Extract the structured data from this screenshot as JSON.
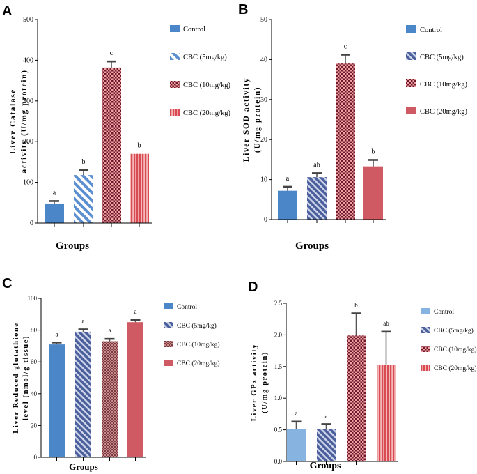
{
  "chart_data": [
    {
      "panel": "A",
      "type": "bar",
      "ylabel_lines": [
        "Liver Catalase",
        "activity (U/mg protein)"
      ],
      "xlabel": "Groups",
      "ylim": [
        0,
        500
      ],
      "yticks": [
        0,
        100,
        200,
        300,
        400,
        500
      ],
      "categories": [
        "Control",
        "CBC (5mg/kg)",
        "CBC (10mg/kg)",
        "CBC (20mg/kg)"
      ],
      "values": [
        48,
        118,
        382,
        170
      ],
      "errors": [
        6,
        12,
        15,
        0
      ],
      "letters": [
        "a",
        "b",
        "c",
        "b"
      ],
      "legend": [
        "Control",
        "CBC (5mg/kg)",
        "CBC (10mg/kg)",
        "CBC (20mg/kg)"
      ],
      "legend_position": "right"
    },
    {
      "panel": "B",
      "type": "bar",
      "ylabel_lines": [
        "Liver SOD activity",
        "(U/mg protein)"
      ],
      "xlabel": "Groups",
      "ylim": [
        0,
        50
      ],
      "yticks": [
        0,
        10,
        20,
        30,
        40,
        50
      ],
      "categories": [
        "Control",
        "CBC (5mg/kg)",
        "CBC (10mg/kg)",
        "CBC (20mg/kg)"
      ],
      "values": [
        7.2,
        10.6,
        39.0,
        13.3
      ],
      "errors": [
        1.0,
        1.0,
        2.2,
        1.6
      ],
      "letters": [
        "a",
        "ab",
        "c",
        "b"
      ],
      "legend": [
        "Control",
        "CBC (5mg/kg)",
        "CBC (10mg/kg)",
        "CBC (20mg/kg)"
      ],
      "legend_position": "right"
    },
    {
      "panel": "C",
      "type": "bar",
      "ylabel_lines": [
        "Liver Reduced glutathione",
        "level (nmol/g tissue)"
      ],
      "xlabel": "Groups",
      "ylim": [
        0,
        100
      ],
      "yticks": [
        0,
        20,
        40,
        60,
        80,
        100
      ],
      "categories": [
        "Control",
        "CBC (5mg/kg)",
        "CBC (10mg/kg)",
        "CBC (20mg/kg)"
      ],
      "values": [
        71,
        79,
        73,
        85
      ],
      "errors": [
        1.2,
        1.5,
        1.5,
        1.3
      ],
      "letters": [
        "a",
        "a",
        "a",
        "a"
      ],
      "legend": [
        "Control",
        "CBC (5mg/kg)",
        "CBC (10mg/kg)",
        "CBC (20mg/kg)"
      ],
      "legend_position": "right"
    },
    {
      "panel": "D",
      "type": "bar",
      "ylabel_lines": [
        "Liver GPx activity",
        "(U/mg protein)"
      ],
      "xlabel": "Groups",
      "ylim": [
        0,
        2.5
      ],
      "yticks": [
        "0.0",
        "0.5",
        "1.0",
        "1.5",
        "2.0",
        "2.5"
      ],
      "categories": [
        "Control",
        "CBC (5mg/kg)",
        "CBC (10mg/kg)",
        "CBC (20mg/kg)"
      ],
      "values": [
        0.51,
        0.51,
        1.99,
        1.53
      ],
      "errors": [
        0.12,
        0.08,
        0.35,
        0.52
      ],
      "letters": [
        "a",
        "a",
        "b",
        "ab"
      ],
      "legend": [
        "Control",
        "CBC (5mg/kg)",
        "CBC (10mg/kg)",
        "CBC (20mg/kg)"
      ],
      "legend_position": "right"
    }
  ],
  "colors": {
    "control_blue": "#4a86c8",
    "control_light_blue": "#86b3e0",
    "striped_blue": "#5470b0",
    "checker_dark": "#6a1a2e",
    "checker_pink": "#f08c8c",
    "stripe_red": "#d94b52"
  }
}
